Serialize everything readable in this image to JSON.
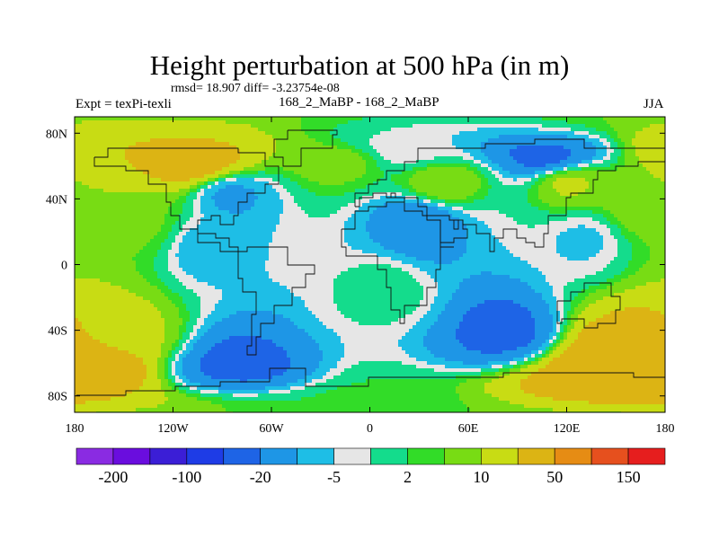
{
  "title": "Height perturbation at 500 hPa (in m)",
  "stats_text": "rmsd= 18.907 diff= -3.23754e-08",
  "experiment_label": "Expt = texPi-texli",
  "subtitle": "168_2_MaBP - 168_2_MaBP",
  "season": "JJA",
  "map": {
    "projection": "cylindrical-equidistant",
    "lon_range": [
      -180,
      180
    ],
    "lat_range": [
      -90,
      90
    ],
    "x_ticks": [
      {
        "lon": -180,
        "label": "180"
      },
      {
        "lon": -120,
        "label": "120W"
      },
      {
        "lon": -60,
        "label": "60W"
      },
      {
        "lon": 0,
        "label": "0"
      },
      {
        "lon": 60,
        "label": "60E"
      },
      {
        "lon": 120,
        "label": "120E"
      },
      {
        "lon": 180,
        "label": "180"
      }
    ],
    "y_ticks": [
      {
        "lat": 80,
        "label": "80N"
      },
      {
        "lat": 40,
        "label": "40N"
      },
      {
        "lat": 0,
        "label": "0"
      },
      {
        "lat": -40,
        "label": "40S"
      },
      {
        "lat": -80,
        "label": "80S"
      }
    ],
    "field_features": [
      {
        "lon": -110,
        "lat": 62,
        "value": 30
      },
      {
        "lon": -160,
        "lat": 70,
        "value": 20
      },
      {
        "lon": -20,
        "lat": 63,
        "value": 8
      },
      {
        "lon": 20,
        "lat": 70,
        "value": -5
      },
      {
        "lon": 105,
        "lat": 65,
        "value": -25
      },
      {
        "lon": 45,
        "lat": 50,
        "value": 10
      },
      {
        "lon": 120,
        "lat": 50,
        "value": 12
      },
      {
        "lon": -85,
        "lat": 42,
        "value": -12
      },
      {
        "lon": 30,
        "lat": 25,
        "value": -20
      },
      {
        "lon": -100,
        "lat": 10,
        "value": -8
      },
      {
        "lon": 130,
        "lat": 15,
        "value": -6
      },
      {
        "lon": 10,
        "lat": -15,
        "value": 0
      },
      {
        "lon": -80,
        "lat": -60,
        "value": -25
      },
      {
        "lon": 80,
        "lat": -40,
        "value": -25
      },
      {
        "lon": -178,
        "lat": -60,
        "value": 40
      },
      {
        "lon": 150,
        "lat": -60,
        "value": 40
      },
      {
        "lon": -150,
        "lat": -40,
        "value": 12
      },
      {
        "lon": 0,
        "lat": -80,
        "value": 3
      },
      {
        "lon": 165,
        "lat": 35,
        "value": 8
      },
      {
        "lon": -140,
        "lat": 25,
        "value": 6
      }
    ]
  },
  "colorbar": {
    "levels": [
      -200,
      -150,
      -100,
      -50,
      -20,
      -10,
      -5,
      -2,
      2,
      5,
      10,
      20,
      50,
      100,
      150,
      200
    ],
    "labels": [
      {
        "level": -200,
        "text": "-200"
      },
      {
        "level": -100,
        "text": "-100"
      },
      {
        "level": -20,
        "text": "-20"
      },
      {
        "level": -5,
        "text": "-5"
      },
      {
        "level": 2,
        "text": "2"
      },
      {
        "level": 10,
        "text": "10"
      },
      {
        "level": 50,
        "text": "50"
      },
      {
        "level": 150,
        "text": "150"
      }
    ],
    "colors": [
      "#8a2be2",
      "#6a0dde",
      "#3b1ed6",
      "#1e3ce6",
      "#1e64e6",
      "#1e96e6",
      "#1ebee6",
      "#e6e6e6",
      "#14dc8c",
      "#32dc28",
      "#78dc14",
      "#c8dc14",
      "#dcb414",
      "#e68c14",
      "#e6501e",
      "#e61e1e"
    ]
  }
}
